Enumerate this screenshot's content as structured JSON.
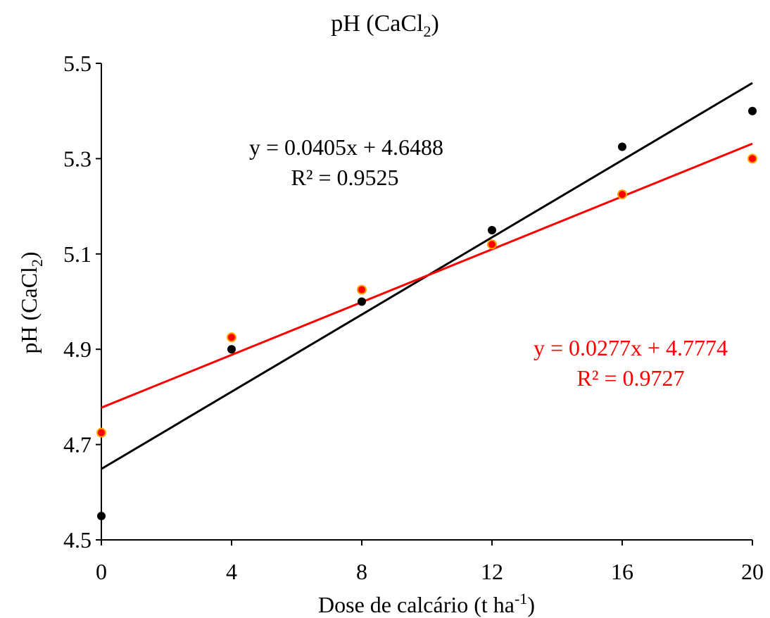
{
  "chart_data": {
    "type": "scatter",
    "title": {
      "main": "pH (CaCl",
      "sub": "2",
      "close": ")"
    },
    "xlabel": {
      "main": "Dose de calcário  (t ha",
      "sup": "-1",
      "close": ")"
    },
    "ylabel": {
      "main": "pH (CaCl",
      "sub": "2",
      "close": ")"
    },
    "xlim": [
      0,
      20
    ],
    "ylim": [
      4.5,
      5.5
    ],
    "x_ticks": [
      0,
      4,
      8,
      12,
      16,
      20
    ],
    "x_tick_labels": [
      "0",
      "4",
      "8",
      "12",
      "16",
      "20"
    ],
    "y_ticks": [
      4.5,
      4.7,
      4.9,
      5.1,
      5.3,
      5.5
    ],
    "y_tick_labels": [
      "4.5",
      "4.7",
      "4.9",
      "5.1",
      "5.3",
      "5.5"
    ],
    "grid": false,
    "legend": "none",
    "series": [
      {
        "color": "#000000",
        "marker_fill": "#000000",
        "x": [
          0,
          4,
          8,
          12,
          16,
          20
        ],
        "y": [
          4.55,
          4.9,
          5.0,
          5.15,
          5.325,
          5.4
        ],
        "trendline": {
          "slope": 0.0405,
          "intercept": 4.6488
        },
        "equation": "y = 0.0405x  + 4.6488",
        "r2": "R² = 0.9525"
      },
      {
        "color": "#ff0000",
        "marker_fill": "#ff0000",
        "marker_edge": "#ffa500",
        "x": [
          0,
          4,
          8,
          12,
          16,
          20
        ],
        "y": [
          4.725,
          4.925,
          5.025,
          5.12,
          5.225,
          5.3
        ],
        "trendline": {
          "slope": 0.0277,
          "intercept": 4.7774
        },
        "equation": "y = 0.0277x  + 4.7774",
        "r2": "R² = 0.9727"
      }
    ]
  }
}
